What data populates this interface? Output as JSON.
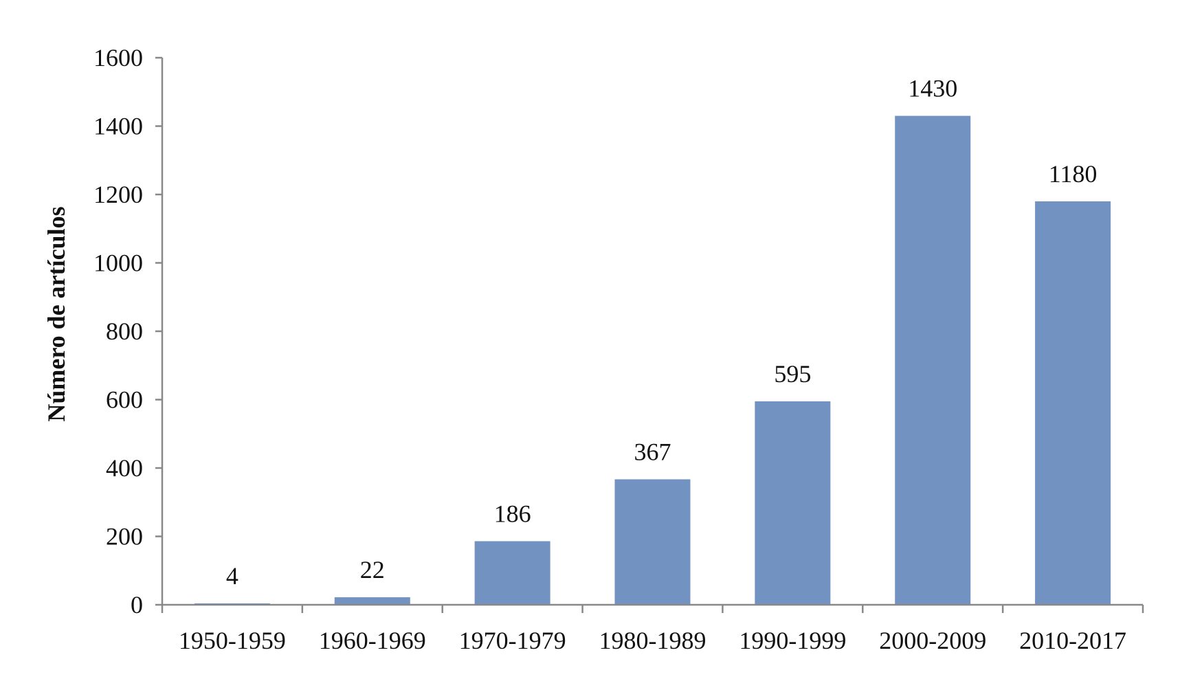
{
  "chart_data": {
    "type": "bar",
    "categories": [
      "1950-1959",
      "1960-1969",
      "1970-1979",
      "1980-1989",
      "1990-1999",
      "2000-2009",
      "2010-2017"
    ],
    "values": [
      4,
      22,
      186,
      367,
      595,
      1430,
      1180
    ],
    "data_labels": [
      "4",
      "22",
      "186",
      "367",
      "595",
      "1430",
      "1180"
    ],
    "title": "",
    "xlabel": "",
    "ylabel": "Número de artículos",
    "ylim": [
      0,
      1600
    ],
    "yticks": [
      0,
      200,
      400,
      600,
      800,
      1000,
      1200,
      1400,
      1600
    ],
    "ytick_labels": [
      "0",
      "200",
      "400",
      "600",
      "800",
      "1000",
      "1200",
      "1400",
      "1600"
    ],
    "grid": false,
    "legend": "none",
    "bar_color": "#7293c2"
  }
}
